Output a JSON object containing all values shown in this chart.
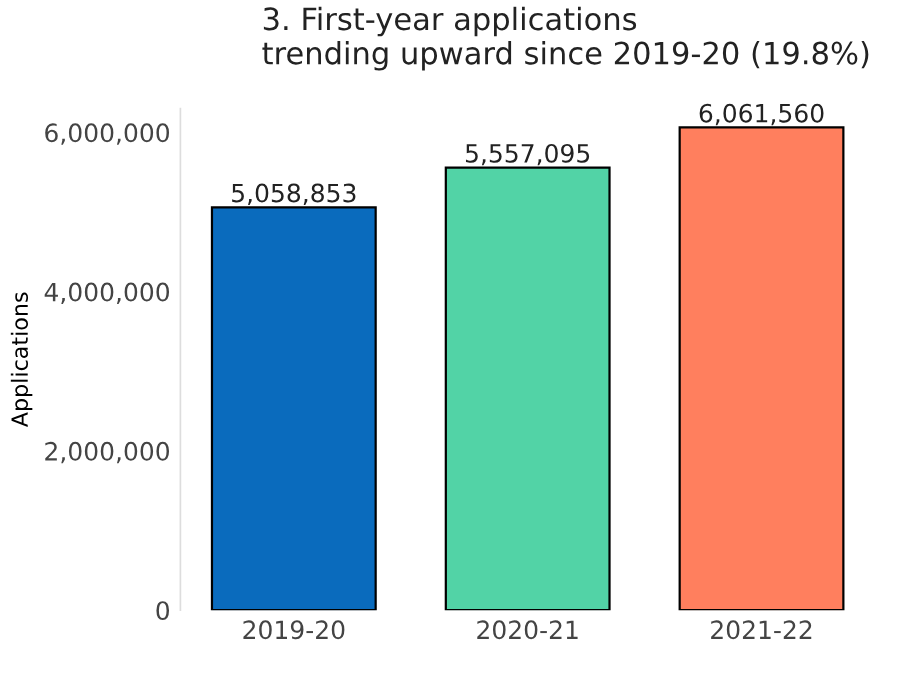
{
  "chart_data": {
    "type": "bar",
    "title": "3. First-year applications\ntrending upward since 2019-20 (19.8%)",
    "ylabel": "Applications",
    "categories": [
      "2019-20",
      "2020-21",
      "2021-22"
    ],
    "values": [
      5058853,
      5557095,
      6061560
    ],
    "colors": [
      "#0a6bbd",
      "#52d3a6",
      "#ff7f5e"
    ],
    "ylim": [
      0,
      6300000
    ],
    "yticks": [
      {
        "value": 0,
        "label": "0"
      },
      {
        "value": 2000000,
        "label": "2,000,000"
      },
      {
        "value": 4000000,
        "label": "4,000,000"
      },
      {
        "value": 6000000,
        "label": "6,000,000"
      }
    ],
    "value_labels": [
      "5,058,853",
      "5,557,095",
      "6,061,560"
    ],
    "grid": false,
    "legend": false
  }
}
